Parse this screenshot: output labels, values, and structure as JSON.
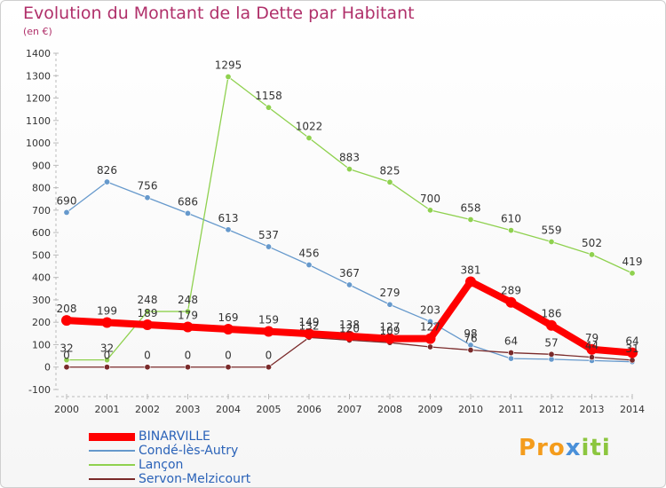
{
  "title": "Evolution du Montant de la Dette par Habitant",
  "subtitle": "(en €)",
  "logo": {
    "part1": "Pro",
    "part2": "x",
    "part3": "iti"
  },
  "chart_data": {
    "type": "line",
    "x": [
      "2000",
      "2001",
      "2002",
      "2003",
      "2004",
      "2005",
      "2006",
      "2007",
      "2008",
      "2009",
      "2010",
      "2011",
      "2012",
      "2013",
      "2014"
    ],
    "ylim": [
      -100,
      1400
    ],
    "yticks": [
      -100,
      0,
      100,
      200,
      300,
      400,
      500,
      600,
      700,
      800,
      900,
      1000,
      1100,
      1200,
      1300,
      1400
    ],
    "grid": false,
    "legend_position": "bottom-left",
    "series": [
      {
        "name": "BINARVILLE",
        "color": "#ff0000",
        "width": 8,
        "marker": 6,
        "values": [
          208,
          199,
          189,
          179,
          169,
          159,
          149,
          138,
          127,
          127,
          381,
          289,
          186,
          79,
          64
        ],
        "labels": [
          "208",
          "199",
          "189",
          "179",
          "169",
          "159",
          "149",
          "138",
          "127",
          "127",
          "381",
          "289",
          "186",
          "79",
          "64"
        ]
      },
      {
        "name": "Condé-lès-Autry",
        "color": "#6699cc",
        "width": 1.3,
        "marker": 3.2,
        "values": [
          690,
          826,
          756,
          686,
          613,
          537,
          456,
          367,
          279,
          203,
          98,
          38,
          35,
          29,
          24
        ],
        "labels": [
          "690",
          "826",
          "756",
          "686",
          "613",
          "537",
          "456",
          "367",
          "279",
          "203",
          "98",
          "",
          "",
          "",
          ""
        ]
      },
      {
        "name": "Lançon",
        "color": "#8fd14f",
        "width": 1.3,
        "marker": 3.2,
        "values": [
          32,
          32,
          248,
          248,
          1295,
          1158,
          1022,
          883,
          825,
          700,
          658,
          610,
          559,
          502,
          419
        ],
        "labels": [
          "32",
          "32",
          "248",
          "248",
          "1295",
          "1158",
          "1022",
          "883",
          "825",
          "700",
          "658",
          "610",
          "559",
          "502",
          "419"
        ]
      },
      {
        "name": "Servon-Melzicourt",
        "color": "#7a2a2a",
        "width": 1.3,
        "marker": 3.2,
        "values": [
          0,
          0,
          0,
          0,
          0,
          0,
          132,
          120,
          109,
          90,
          76,
          64,
          57,
          44,
          31
        ],
        "labels": [
          "0",
          "0",
          "0",
          "0",
          "0",
          "0",
          "132",
          "120",
          "109",
          "",
          "76",
          "64",
          "57",
          "44",
          "31"
        ]
      }
    ]
  }
}
